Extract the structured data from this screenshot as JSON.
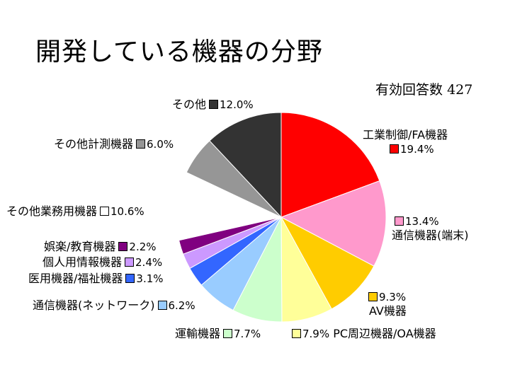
{
  "chart_data": {
    "type": "pie",
    "title": "開発している機器の分野",
    "note_label": "有効回答数",
    "note_value": "427",
    "slices": [
      {
        "name": "工業制御/FA機器",
        "value": 19.4,
        "label": "19.4%",
        "color": "#ff0000"
      },
      {
        "name": "通信機器(端末)",
        "value": 13.4,
        "label": "13.4%",
        "color": "#ff99cc"
      },
      {
        "name": "AV機器",
        "value": 9.3,
        "label": "9.3%",
        "color": "#ffcc00"
      },
      {
        "name": "PC周辺機器/OA機器",
        "value": 7.9,
        "label": "7.9%",
        "color": "#ffff99"
      },
      {
        "name": "運輸機器",
        "value": 7.7,
        "label": "7.7%",
        "color": "#ccffcc"
      },
      {
        "name": "通信機器(ネットワーク)",
        "value": 6.2,
        "label": "6.2%",
        "color": "#99ccff"
      },
      {
        "name": "医用機器/福祉機器",
        "value": 3.1,
        "label": "3.1%",
        "color": "#3366ff"
      },
      {
        "name": "個人用情報機器",
        "value": 2.4,
        "label": "2.4%",
        "color": "#cc99ff"
      },
      {
        "name": "娯楽/教育機器",
        "value": 2.2,
        "label": "2.2%",
        "color": "#800080"
      },
      {
        "name": "その他業務用機器",
        "value": 10.6,
        "label": "10.6%",
        "color": "#ffffff"
      },
      {
        "name": "その他計測機器",
        "value": 6.0,
        "label": "6.0%",
        "color": "#969696"
      },
      {
        "name": "その他",
        "value": 12.0,
        "label": "12.0%",
        "color": "#333333"
      }
    ]
  }
}
